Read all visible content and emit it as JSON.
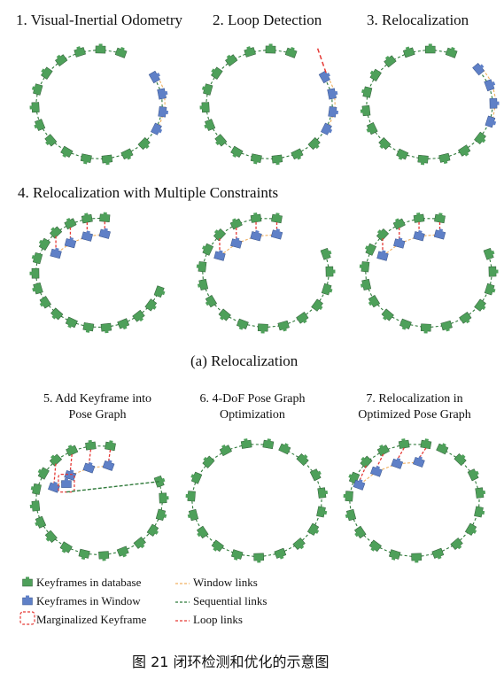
{
  "panels_top": [
    {
      "title": "1. Visual-Inertial Odometry"
    },
    {
      "title": "2. Loop Detection"
    },
    {
      "title": "3. Relocalization"
    }
  ],
  "row2_title": "4. Relocalization with Multiple Constraints",
  "subcaption": "(a)  Relocalization",
  "panels_bottom": [
    {
      "line1": "5. Add Keyframe into",
      "line2": "Pose Graph"
    },
    {
      "line1": "6. 4-DoF Pose Graph",
      "line2": "Optimization"
    },
    {
      "line1": "7. Relocalization in",
      "line2": "Optimized Pose Graph"
    }
  ],
  "legend": {
    "keyframes_db": "Keyframes in database",
    "keyframes_window": "Keyframes in Window",
    "marginalized": "Marginalized Keyframe",
    "window_links": "Window links",
    "sequential_links": "Sequential links",
    "loop_links": "Loop links"
  },
  "figure_caption": "图 21  闭环检测和优化的示意图",
  "colors": {
    "database_keyframe": "#4ea05a",
    "window_keyframe": "#5f80c7",
    "sequential_link": "#2f7a3a",
    "window_link": "#f0b060",
    "loop_link": "#e53935"
  }
}
